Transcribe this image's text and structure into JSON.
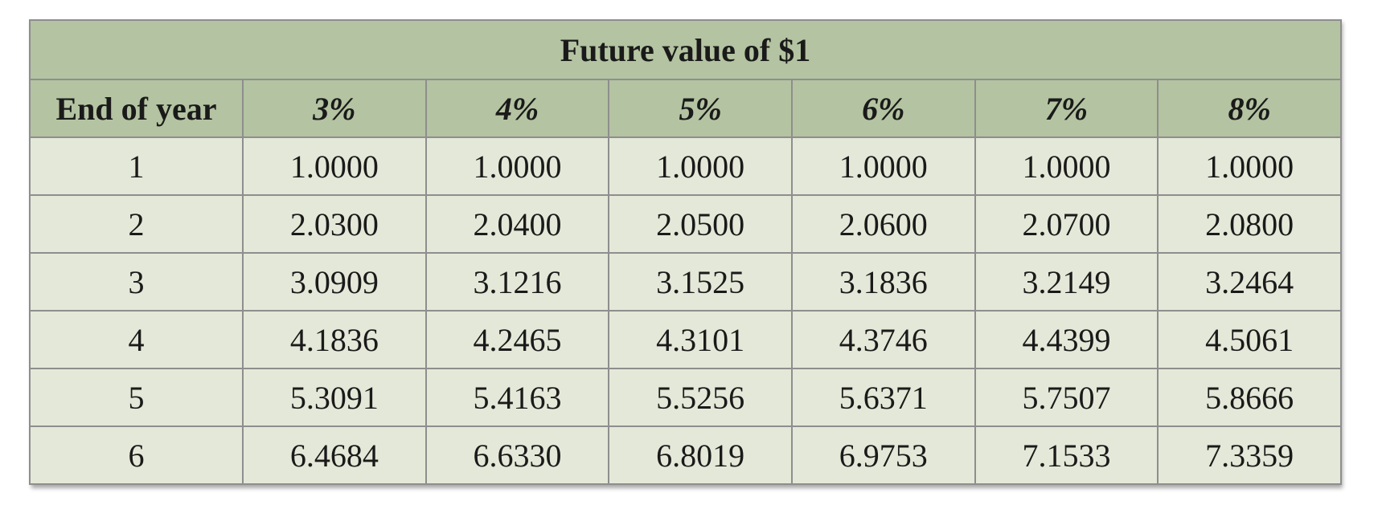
{
  "table": {
    "title": "Future value of $1",
    "row_header": "End of year",
    "rates": [
      "3%",
      "4%",
      "5%",
      "6%",
      "7%",
      "8%"
    ],
    "rows": [
      {
        "year": "1",
        "values": [
          "1.0000",
          "1.0000",
          "1.0000",
          "1.0000",
          "1.0000",
          "1.0000"
        ]
      },
      {
        "year": "2",
        "values": [
          "2.0300",
          "2.0400",
          "2.0500",
          "2.0600",
          "2.0700",
          "2.0800"
        ]
      },
      {
        "year": "3",
        "values": [
          "3.0909",
          "3.1216",
          "3.1525",
          "3.1836",
          "3.2149",
          "3.2464"
        ]
      },
      {
        "year": "4",
        "values": [
          "4.1836",
          "4.2465",
          "4.3101",
          "4.3746",
          "4.4399",
          "4.5061"
        ]
      },
      {
        "year": "5",
        "values": [
          "5.3091",
          "5.4163",
          "5.5256",
          "5.6371",
          "5.7507",
          "5.8666"
        ]
      },
      {
        "year": "6",
        "values": [
          "6.4684",
          "6.6330",
          "6.8019",
          "6.9753",
          "7.1533",
          "7.3359"
        ]
      }
    ]
  },
  "colors": {
    "header_bg": "#b4c3a1",
    "cell_bg": "#e4e8d8",
    "border": "#8e8e8e"
  }
}
